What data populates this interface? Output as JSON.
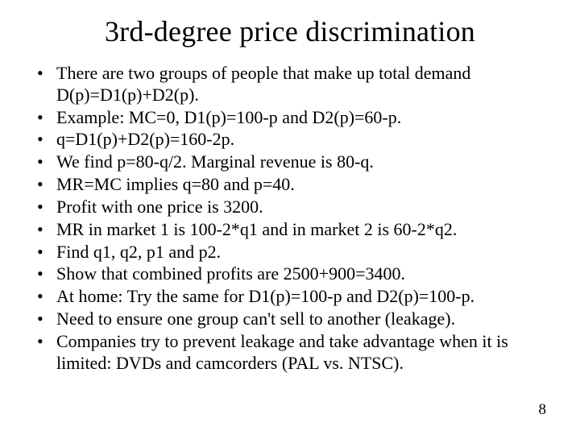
{
  "title": "3rd-degree price discrimination",
  "bullets": [
    "There are two groups of people that make up total demand D(p)=D1(p)+D2(p).",
    "Example: MC=0,  D1(p)=100-p and D2(p)=60-p.",
    "q=D1(p)+D2(p)=160-2p.",
    "We find p=80-q/2. Marginal revenue is 80-q.",
    "MR=MC implies q=80 and p=40.",
    "Profit with one price is 3200.",
    "MR in market 1 is 100-2*q1 and in market 2 is 60-2*q2.",
    "Find q1, q2, p1 and p2.",
    "Show that combined profits are 2500+900=3400.",
    "At home: Try the same for D1(p)=100-p and D2(p)=100-p.",
    "Need to ensure one group can't sell to another (leakage).",
    "Companies try to prevent leakage and take advantage when it is limited: DVDs and camcorders (PAL vs. NTSC)."
  ],
  "page_number": "8"
}
